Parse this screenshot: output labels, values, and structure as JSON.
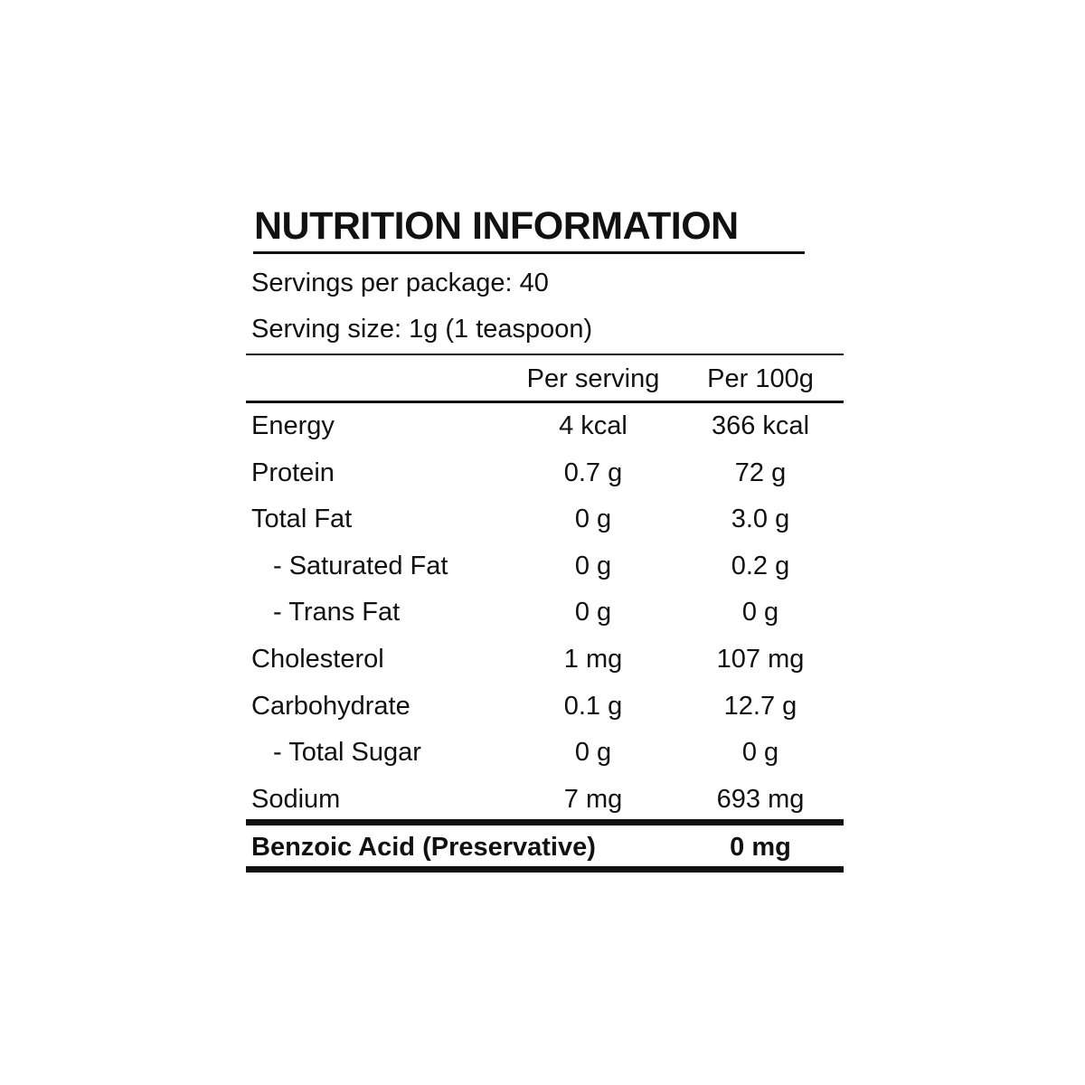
{
  "title": "NUTRITION INFORMATION",
  "servings_per_package": "Servings per package: 40",
  "serving_size": "Serving size: 1g (1 teaspoon)",
  "columns": {
    "per_serving": "Per serving",
    "per_100g": "Per 100g"
  },
  "rows": [
    {
      "label": "Energy",
      "per_serving": "4 kcal",
      "per_100g": "366 kcal"
    },
    {
      "label": "Protein",
      "per_serving": "0.7 g",
      "per_100g": "72 g"
    },
    {
      "label": "Total Fat",
      "per_serving": "0 g",
      "per_100g": "3.0 g"
    },
    {
      "label": "- Saturated Fat",
      "per_serving": "0 g",
      "per_100g": "0.2 g"
    },
    {
      "label": "- Trans Fat",
      "per_serving": "0 g",
      "per_100g": "0 g"
    },
    {
      "label": "Cholesterol",
      "per_serving": "1 mg",
      "per_100g": "107 mg"
    },
    {
      "label": "Carbohydrate",
      "per_serving": "0.1 g",
      "per_100g": "12.7 g"
    },
    {
      "label": "- Total Sugar",
      "per_serving": "0 g",
      "per_100g": "0 g"
    },
    {
      "label": "Sodium",
      "per_serving": "7 mg",
      "per_100g": "693 mg"
    }
  ],
  "footer": {
    "label": "Benzoic Acid (Preservative)",
    "per_100g": "0 mg"
  }
}
